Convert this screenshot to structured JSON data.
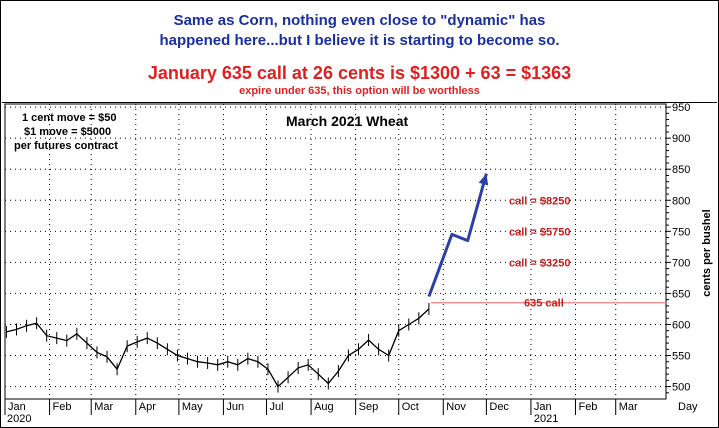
{
  "header": {
    "line1": "Same as Corn, nothing even close to \"dynamic\" has",
    "line2": "happened here...but I believe it is starting to become so.",
    "line3": "January 635 call at 26 cents is $1300 + 63 = $1363",
    "line4": "expire under 635, this option will be worthless"
  },
  "notes": [
    "1 cent move = $50",
    "$1 move = $5000",
    "per futures contract"
  ],
  "colors": {
    "price": "#000000",
    "arrow": "#2b3fa8",
    "annotation": "#c81e1e",
    "call_line": "#f08080",
    "header_blue": "#1a2fa0",
    "header_red": "#e02020"
  },
  "chart_data": {
    "type": "line",
    "title": "March 2021 Wheat",
    "xlabel": "Day",
    "ylabel": "cents per bushel",
    "ylim": [
      480,
      955
    ],
    "yticks": [
      500,
      550,
      600,
      650,
      700,
      750,
      800,
      850,
      900,
      950
    ],
    "grid": true,
    "x_months": [
      "Jan",
      "Feb",
      "Mar",
      "Apr",
      "May",
      "Jun",
      "Jul",
      "Aug",
      "Sep",
      "Oct",
      "Nov",
      "Dec",
      "Jan",
      "Feb",
      "Mar"
    ],
    "x_years": [
      "2020",
      "2021"
    ],
    "series": [
      {
        "x": [
          "2020-01-02",
          "2020-01-09",
          "2020-01-16",
          "2020-01-23",
          "2020-01-30",
          "2020-02-06",
          "2020-02-13",
          "2020-02-20",
          "2020-02-27",
          "2020-03-05",
          "2020-03-12",
          "2020-03-19",
          "2020-03-26",
          "2020-04-02",
          "2020-04-09",
          "2020-04-16",
          "2020-04-23",
          "2020-04-30",
          "2020-05-07",
          "2020-05-14",
          "2020-05-21",
          "2020-05-28",
          "2020-06-04",
          "2020-06-11",
          "2020-06-18",
          "2020-06-25",
          "2020-07-02",
          "2020-07-09",
          "2020-07-16",
          "2020-07-23",
          "2020-07-30",
          "2020-08-06",
          "2020-08-13",
          "2020-08-20",
          "2020-08-27",
          "2020-09-03",
          "2020-09-10",
          "2020-09-17",
          "2020-09-24",
          "2020-10-01",
          "2020-10-08",
          "2020-10-15",
          "2020-10-22"
        ],
        "y": [
          588,
          592,
          598,
          602,
          582,
          578,
          574,
          585,
          570,
          555,
          548,
          528,
          565,
          572,
          578,
          570,
          560,
          550,
          545,
          540,
          538,
          535,
          540,
          535,
          545,
          540,
          528,
          500,
          515,
          530,
          535,
          520,
          505,
          525,
          550,
          560,
          575,
          560,
          550,
          590,
          600,
          610,
          625
        ]
      }
    ],
    "annotations": [
      {
        "text": "635 call",
        "y": 635,
        "x_start": "2020-10-22",
        "x_end": "2021-04-05"
      },
      {
        "text": "call = $8250",
        "y": 800
      },
      {
        "text": "call = $5750",
        "y": 750
      },
      {
        "text": "call = $3250",
        "y": 700
      }
    ],
    "projection": {
      "x": [
        "2020-10-22",
        "2020-11-07",
        "2020-11-18",
        "2020-12-01"
      ],
      "y": [
        645,
        745,
        735,
        843
      ]
    }
  }
}
